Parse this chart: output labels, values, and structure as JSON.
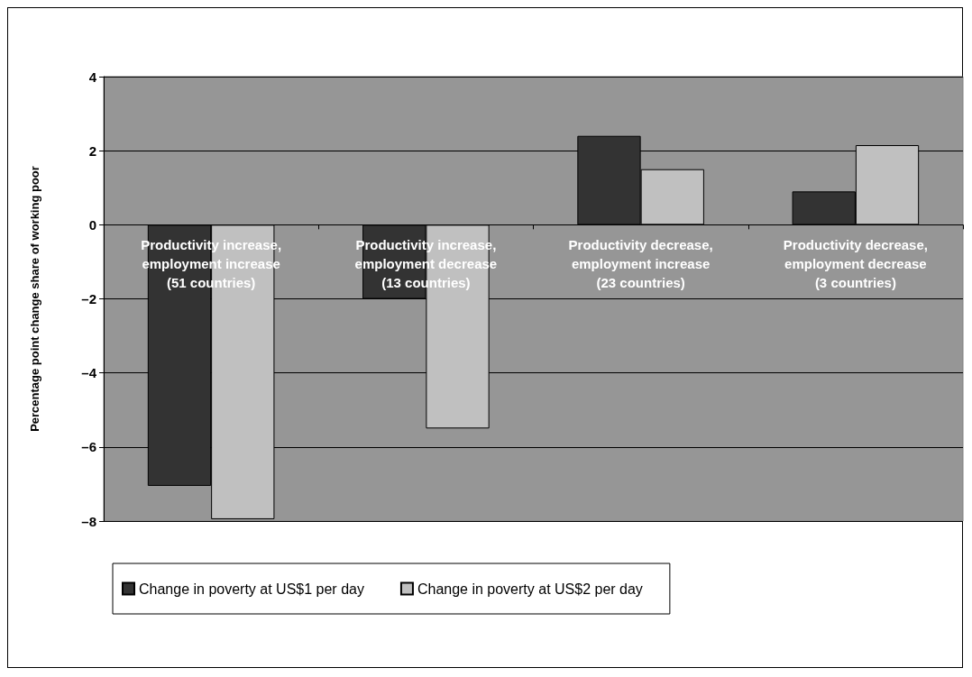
{
  "chart_data": {
    "type": "bar",
    "ylabel": "Percentage point change share of working poor",
    "categories": [
      "Productivity increase,\nemployment increase\n(51 countries)",
      "Productivity increase,\nemployment decrease\n(13 countries)",
      "Productivity decrease,\nemployment increase\n(23 countries)",
      "Productivity decrease,\nemployment decrease\n(3 countries)"
    ],
    "series": [
      {
        "name": "Change in poverty at US$1 per day",
        "color": "#333333",
        "values": [
          -7.05,
          -2.0,
          2.4,
          0.9
        ]
      },
      {
        "name": "Change in poverty at US$2 per day",
        "color": "#c0c0c0",
        "values": [
          -7.95,
          -5.5,
          1.5,
          2.15
        ]
      }
    ],
    "ylim": [
      -8,
      4
    ],
    "yticks": [
      {
        "value": -8,
        "label": "–8"
      },
      {
        "value": -6,
        "label": "–6"
      },
      {
        "value": -4,
        "label": "–4"
      },
      {
        "value": -2,
        "label": "–2"
      },
      0,
      2,
      4
    ],
    "grid": "y",
    "legend": "bottom"
  }
}
